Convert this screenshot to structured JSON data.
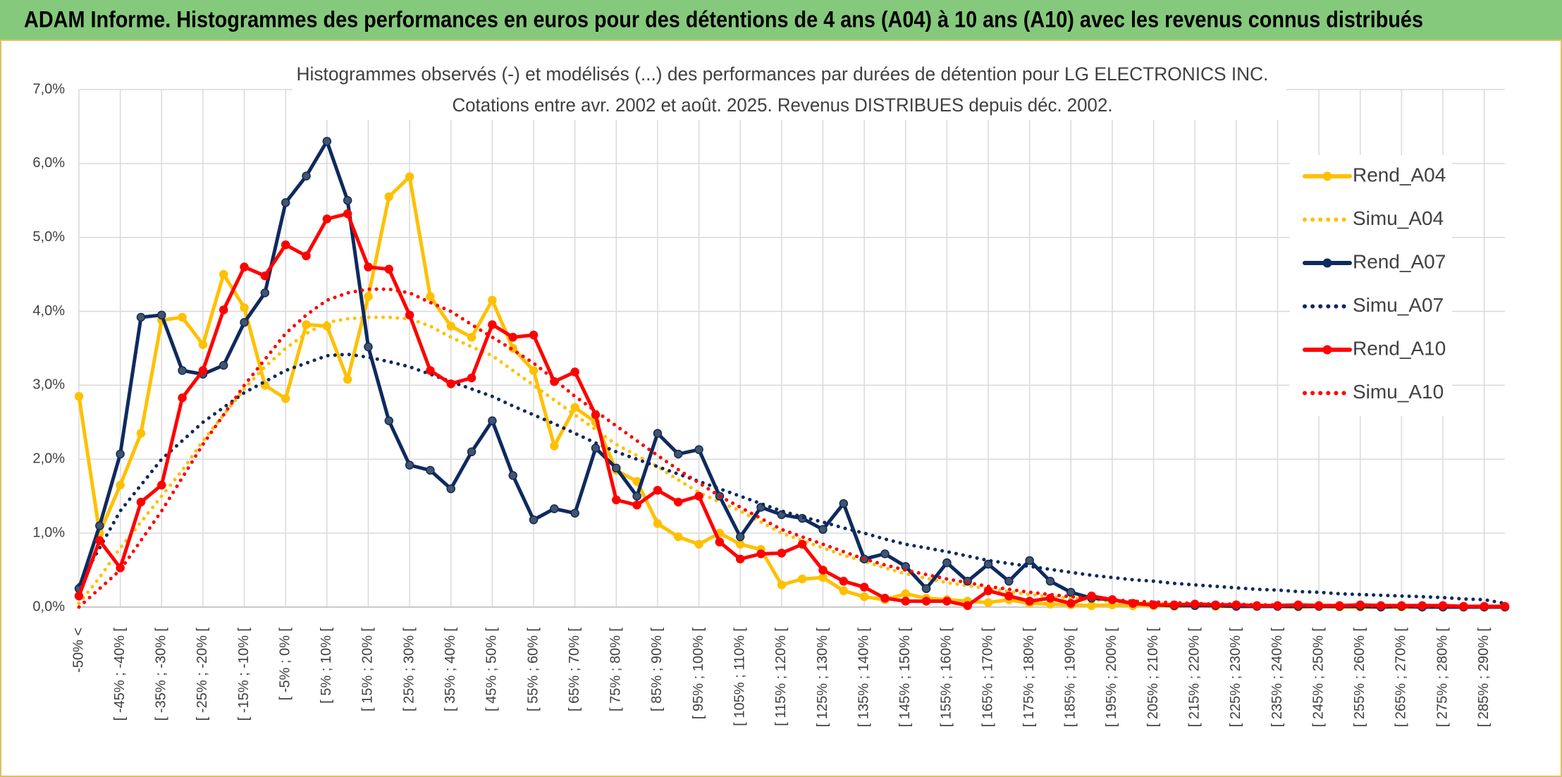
{
  "chart_data": {
    "type": "line",
    "header": "ADAM Informe. Histogrammes des performances en euros pour des détentions de 4 ans (A04) à 10 ans (A10) avec les revenus connus distribués",
    "title": "Histogrammes observés (-) et modélisés (...) des performances par durées de détention pour LG ELECTRONICS INC.",
    "subtitle": "Cotations entre avr. 2002 et août. 2025. Revenus DISTRIBUES depuis déc. 2002.",
    "categories": [
      "-50% <",
      null,
      "[ -45% ; -40% [",
      null,
      "[ -35% ; -30% [",
      null,
      "[ -25% ; -20% [",
      null,
      "[ -15% ; -10% [",
      null,
      "[ -5% ; 0% [",
      null,
      "[ 5% ; 10% [",
      null,
      "[ 15% ; 20% [",
      null,
      "[ 25% ; 30% [",
      null,
      "[ 35% ; 40% [",
      null,
      "[ 45% ; 50% [",
      null,
      "[ 55% ; 60% [",
      null,
      "[ 65% ; 70% [",
      null,
      "[ 75% ; 80% [",
      null,
      "[ 85% ; 90% [",
      null,
      "[ 95% ; 100% [",
      null,
      "[ 105% ; 110% [",
      null,
      "[ 115% ; 120% [",
      null,
      "[ 125% ; 130% [",
      null,
      "[ 135% ; 140% [",
      null,
      "[ 145% ; 150% [",
      null,
      "[ 155% ; 160% [",
      null,
      "[ 165% ; 170% [",
      null,
      "[ 175% ; 180% [",
      null,
      "[ 185% ; 190% [",
      null,
      "[ 195% ; 200% [",
      null,
      "[ 205% ; 210% [",
      null,
      "[ 215% ; 220% [",
      null,
      "[ 225% ; 230% [",
      null,
      "[ 235% ; 240% [",
      null,
      "[ 245% ; 250% [",
      null,
      "[ 255% ; 260% [",
      null,
      "[ 265% ; 270% [",
      null,
      "[ 275% ; 280% [",
      null,
      "[ 285% ; 290% [",
      null
    ],
    "series": [
      {
        "name": "Rend_A04",
        "color": "#ffc000",
        "style": "solid",
        "values": [
          2.85,
          1.0,
          1.65,
          2.35,
          3.88,
          3.92,
          3.55,
          4.5,
          4.05,
          3.0,
          2.82,
          3.82,
          3.8,
          3.08,
          4.2,
          5.55,
          5.82,
          4.2,
          3.8,
          3.65,
          4.15,
          3.5,
          3.2,
          2.18,
          2.7,
          2.5,
          1.85,
          1.7,
          1.13,
          0.95,
          0.85,
          1.0,
          0.85,
          0.78,
          0.3,
          0.38,
          0.4,
          0.22,
          0.14,
          0.1,
          0.18,
          0.12,
          0.1,
          0.08,
          0.06,
          0.1,
          0.05,
          0.04,
          0.03,
          0.02,
          0.03,
          0.02,
          0.02,
          0.01,
          0.02,
          0.01,
          0.01,
          0.01,
          0.01,
          0,
          0.01,
          0,
          0,
          0,
          0,
          0,
          0,
          0,
          0,
          0
        ]
      },
      {
        "name": "Simu_A04",
        "color": "#ffc000",
        "style": "dotted",
        "values": [
          0.05,
          0.4,
          0.8,
          1.15,
          1.5,
          1.85,
          2.25,
          2.6,
          2.95,
          3.25,
          3.5,
          3.7,
          3.85,
          3.9,
          3.92,
          3.92,
          3.9,
          3.8,
          3.65,
          3.52,
          3.4,
          3.2,
          3.0,
          2.8,
          2.6,
          2.4,
          2.2,
          2.05,
          1.9,
          1.72,
          1.55,
          1.42,
          1.3,
          1.15,
          1.0,
          0.9,
          0.8,
          0.7,
          0.62,
          0.53,
          0.45,
          0.39,
          0.33,
          0.29,
          0.25,
          0.21,
          0.17,
          0.14,
          0.12,
          0.1,
          0.08,
          0.06,
          0.05,
          0.04,
          0.03,
          0.03,
          0.02,
          0.02,
          0.02,
          0.01,
          0.01,
          0.01,
          0.01,
          0.01,
          0.01,
          0,
          0,
          0,
          0,
          0
        ]
      },
      {
        "name": "Rend_A07",
        "color": "#0f2a5e",
        "style": "solid",
        "values": [
          0.25,
          1.1,
          2.07,
          3.92,
          3.95,
          3.2,
          3.15,
          3.27,
          3.85,
          4.25,
          5.47,
          5.83,
          6.3,
          5.5,
          3.52,
          2.52,
          1.92,
          1.85,
          1.6,
          2.1,
          2.52,
          1.78,
          1.18,
          1.33,
          1.27,
          2.15,
          1.88,
          1.5,
          2.35,
          2.07,
          2.13,
          1.5,
          0.95,
          1.35,
          1.25,
          1.2,
          1.05,
          1.4,
          0.65,
          0.72,
          0.55,
          0.25,
          0.6,
          0.35,
          0.58,
          0.35,
          0.63,
          0.35,
          0.2,
          0.12,
          0.1,
          0.05,
          0.03,
          0.02,
          0.02,
          0.02,
          0.01,
          0.01,
          0.01,
          0.01,
          0.01,
          0.01,
          0.01,
          0,
          0.01,
          0,
          0,
          0,
          0,
          0
        ]
      },
      {
        "name": "Simu_A07",
        "color": "#0f2a5e",
        "style": "dotted",
        "values": [
          0.3,
          0.8,
          1.3,
          1.65,
          2.0,
          2.25,
          2.5,
          2.7,
          2.9,
          3.05,
          3.2,
          3.3,
          3.4,
          3.42,
          3.38,
          3.32,
          3.25,
          3.15,
          3.05,
          2.95,
          2.85,
          2.72,
          2.6,
          2.48,
          2.35,
          2.22,
          2.1,
          2.0,
          1.9,
          1.8,
          1.7,
          1.6,
          1.5,
          1.4,
          1.3,
          1.22,
          1.15,
          1.07,
          1.0,
          0.92,
          0.85,
          0.8,
          0.75,
          0.69,
          0.63,
          0.59,
          0.55,
          0.51,
          0.47,
          0.43,
          0.4,
          0.37,
          0.35,
          0.32,
          0.3,
          0.28,
          0.26,
          0.24,
          0.23,
          0.21,
          0.2,
          0.18,
          0.17,
          0.16,
          0.15,
          0.14,
          0.13,
          0.11,
          0.1,
          0.05
        ]
      },
      {
        "name": "Rend_A10",
        "color": "#ff0000",
        "style": "solid",
        "values": [
          0.15,
          0.9,
          0.53,
          1.42,
          1.65,
          2.83,
          3.2,
          4.02,
          4.6,
          4.48,
          4.9,
          4.75,
          5.25,
          5.32,
          4.6,
          4.57,
          3.95,
          3.2,
          3.02,
          3.1,
          3.82,
          3.65,
          3.68,
          3.05,
          3.18,
          2.6,
          1.45,
          1.38,
          1.58,
          1.42,
          1.5,
          0.88,
          0.65,
          0.72,
          0.73,
          0.85,
          0.5,
          0.35,
          0.27,
          0.12,
          0.08,
          0.08,
          0.08,
          0.02,
          0.22,
          0.15,
          0.08,
          0.12,
          0.05,
          0.15,
          0.1,
          0.05,
          0.03,
          0.03,
          0.04,
          0.03,
          0.03,
          0.02,
          0.02,
          0.03,
          0.02,
          0.02,
          0.03,
          0.02,
          0.02,
          0.02,
          0.02,
          0.01,
          0.01,
          0.01
        ]
      },
      {
        "name": "Simu_A10",
        "color": "#ff0000",
        "style": "dotted",
        "values": [
          0,
          0.25,
          0.5,
          0.9,
          1.3,
          1.75,
          2.2,
          2.6,
          3.0,
          3.35,
          3.7,
          3.95,
          4.15,
          4.25,
          4.3,
          4.3,
          4.25,
          4.12,
          4.0,
          3.82,
          3.65,
          3.48,
          3.3,
          3.08,
          2.85,
          2.65,
          2.45,
          2.25,
          2.05,
          1.86,
          1.68,
          1.5,
          1.35,
          1.2,
          1.05,
          0.95,
          0.85,
          0.75,
          0.65,
          0.57,
          0.5,
          0.44,
          0.38,
          0.33,
          0.28,
          0.24,
          0.2,
          0.17,
          0.14,
          0.12,
          0.1,
          0.08,
          0.07,
          0.06,
          0.05,
          0.04,
          0.04,
          0.03,
          0.03,
          0.02,
          0.02,
          0.02,
          0.02,
          0.01,
          0.01,
          0.01,
          0.01,
          0.01,
          0,
          0
        ]
      }
    ],
    "ylim": [
      0,
      7
    ],
    "yticks": [
      {
        "value": 0,
        "label": "0,0%"
      },
      {
        "value": 1,
        "label": "1,0%"
      },
      {
        "value": 2,
        "label": "2,0%"
      },
      {
        "value": 3,
        "label": "3,0%"
      },
      {
        "value": 4,
        "label": "4,0%"
      },
      {
        "value": 5,
        "label": "5,0%"
      },
      {
        "value": 6,
        "label": "6,0%"
      },
      {
        "value": 7,
        "label": "7,0%"
      }
    ],
    "grid": true,
    "legend": "right"
  }
}
